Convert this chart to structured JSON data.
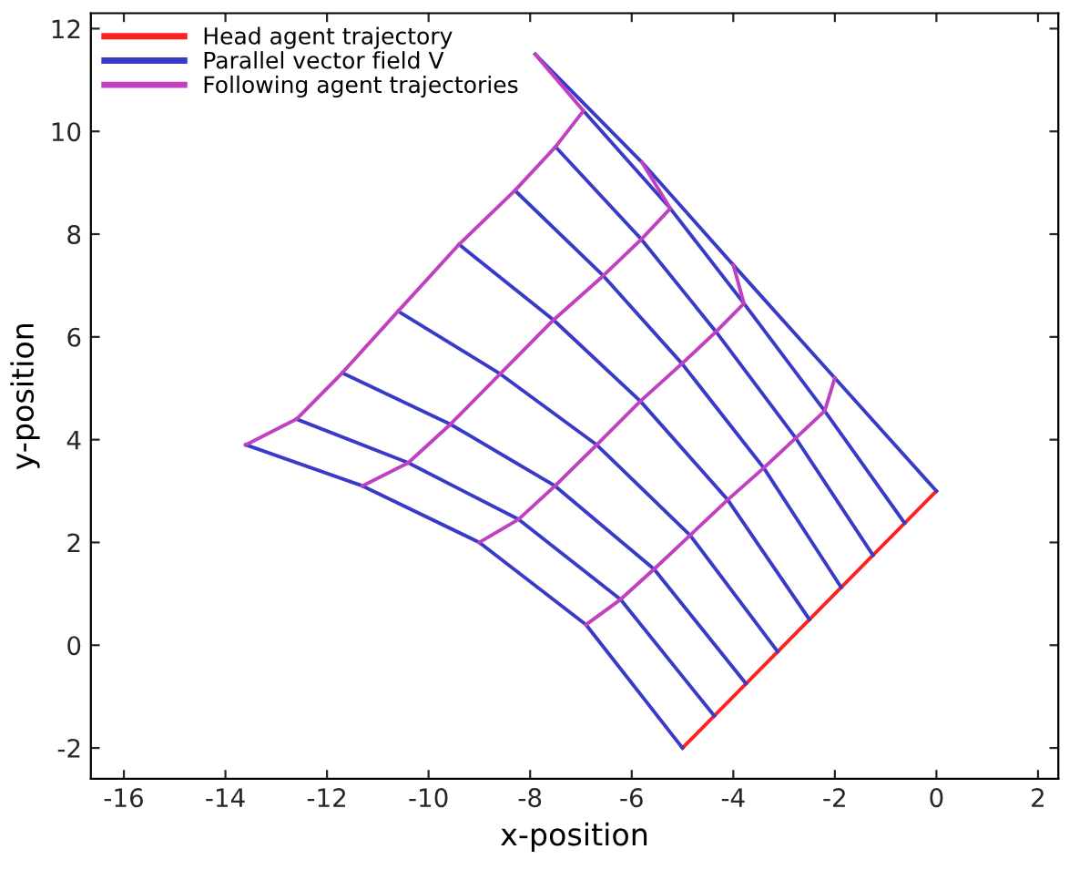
{
  "chart_data": {
    "type": "line",
    "xlabel": "x-position",
    "ylabel": "y-position",
    "xlim": [
      -16.65,
      2.4
    ],
    "ylim": [
      -2.6,
      12.3
    ],
    "xticks": [
      -16,
      -14,
      -12,
      -10,
      -8,
      -6,
      -4,
      -2,
      0,
      2
    ],
    "yticks": [
      -2,
      0,
      2,
      4,
      6,
      8,
      10,
      12
    ],
    "grid": false,
    "legend": "top left",
    "marker": "none",
    "line_style": "solid",
    "series": [
      {
        "name": "Head agent trajectory",
        "color": "#ff2020",
        "x": [
          0,
          -5
        ],
        "values": [
          3,
          -2
        ]
      },
      {
        "name": "Parallel vector field V",
        "color": "#3a3ac8",
        "x": [
          0,
          -2.0,
          -4.0,
          -5.8,
          -7.9
        ],
        "values": [
          3,
          5.2,
          7.4,
          9.4,
          11.5
        ]
      },
      {
        "color": "#3a3ac8",
        "x": [
          -0.625,
          -2.2,
          -3.79,
          -5.24,
          -6.95
        ],
        "values": [
          2.375,
          4.56,
          6.65,
          8.5,
          10.4
        ]
      },
      {
        "color": "#3a3ac8",
        "x": [
          -1.25,
          -2.77,
          -4.34,
          -5.81,
          -7.5
        ],
        "values": [
          1.75,
          4.03,
          6.1,
          7.9,
          9.7
        ]
      },
      {
        "color": "#3a3ac8",
        "x": [
          -1.875,
          -3.4,
          -5.01,
          -6.56,
          -8.3
        ],
        "values": [
          1.125,
          3.45,
          5.48,
          7.19,
          8.85
        ]
      },
      {
        "color": "#3a3ac8",
        "x": [
          -2.5,
          -4.11,
          -5.83,
          -7.54,
          -9.4
        ],
        "values": [
          0.5,
          2.83,
          4.75,
          6.33,
          7.8
        ]
      },
      {
        "color": "#3a3ac8",
        "x": [
          -3.125,
          -4.85,
          -6.69,
          -8.59,
          -10.6
        ],
        "values": [
          -0.125,
          2.14,
          3.9,
          5.28,
          6.5
        ]
      },
      {
        "color": "#3a3ac8",
        "x": [
          -3.75,
          -5.56,
          -7.51,
          -9.57,
          -11.7
        ],
        "values": [
          -0.75,
          1.48,
          3.1,
          4.3,
          5.3
        ]
      },
      {
        "color": "#3a3ac8",
        "x": [
          -4.375,
          -6.22,
          -8.23,
          -10.4,
          -12.6
        ],
        "values": [
          -1.375,
          0.89,
          2.45,
          3.55,
          4.4
        ]
      },
      {
        "color": "#3a3ac8",
        "x": [
          -5,
          -6.9,
          -9.0,
          -11.3,
          -13.6
        ],
        "values": [
          -2,
          0.4,
          2.0,
          3.1,
          3.9
        ]
      },
      {
        "name": "Following agent trajectories",
        "color": "#c040c0",
        "x": [
          -2.0,
          -2.2,
          -2.77,
          -3.4,
          -4.11,
          -4.85,
          -5.56,
          -6.22,
          -6.9
        ],
        "values": [
          5.2,
          4.56,
          4.03,
          3.45,
          2.83,
          2.14,
          1.48,
          0.89,
          0.4
        ]
      },
      {
        "color": "#c040c0",
        "x": [
          -4.0,
          -3.79,
          -4.34,
          -5.01,
          -5.83,
          -6.69,
          -7.51,
          -8.23,
          -9.0
        ],
        "values": [
          7.4,
          6.65,
          6.1,
          5.48,
          4.75,
          3.9,
          3.1,
          2.45,
          2.0
        ]
      },
      {
        "color": "#c040c0",
        "x": [
          -5.8,
          -5.24,
          -5.81,
          -6.56,
          -7.54,
          -8.59,
          -9.57,
          -10.4,
          -11.3
        ],
        "values": [
          9.4,
          8.5,
          7.9,
          7.19,
          6.33,
          5.28,
          4.3,
          3.55,
          3.1
        ]
      },
      {
        "color": "#c040c0",
        "x": [
          -7.9,
          -6.95,
          -7.5,
          -8.3,
          -9.4,
          -10.6,
          -11.7,
          -12.6,
          -13.6
        ],
        "values": [
          11.5,
          10.4,
          9.7,
          8.85,
          7.8,
          6.5,
          5.3,
          4.4,
          3.9
        ]
      }
    ]
  }
}
